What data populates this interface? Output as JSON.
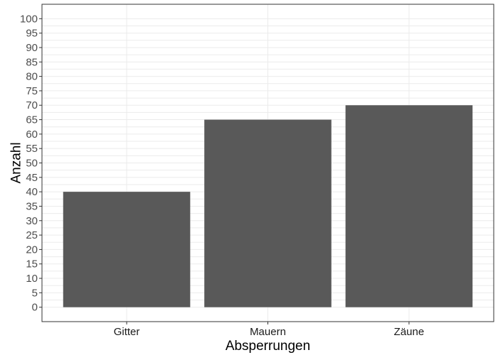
{
  "chart_data": {
    "type": "bar",
    "title": "",
    "xlabel": "Absperrungen",
    "ylabel": "Anzahl",
    "categories": [
      "Gitter",
      "Mauern",
      "Zäune"
    ],
    "values": [
      40,
      65,
      70
    ],
    "ylim": [
      0,
      100
    ],
    "ytick_step": 5,
    "yticks": [
      "0",
      "5",
      "10",
      "15",
      "20",
      "25",
      "30",
      "35",
      "40",
      "45",
      "50",
      "55",
      "60",
      "65",
      "70",
      "75",
      "80",
      "85",
      "90",
      "95",
      "100"
    ],
    "grid": true,
    "legend": "none",
    "colors": {
      "bar": "#595959",
      "grid": "#ebebeb",
      "panel_border": "#333333"
    }
  }
}
